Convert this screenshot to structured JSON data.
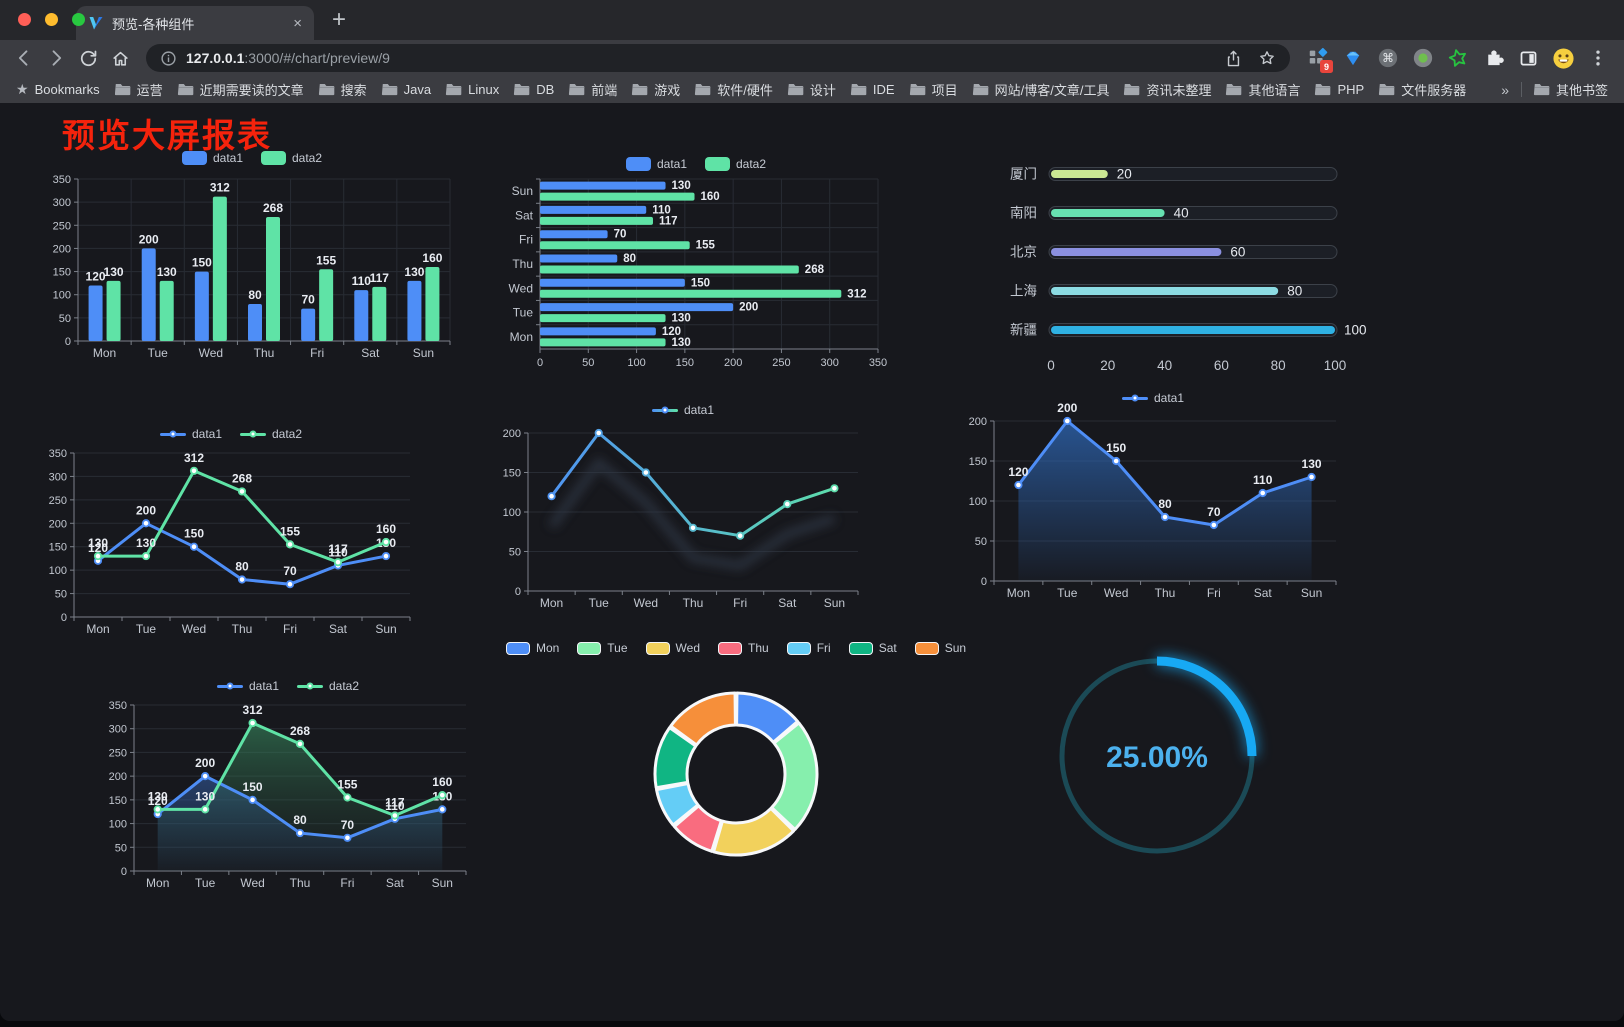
{
  "browser": {
    "traffic_lights": {
      "close": "#ff5f57",
      "minimize": "#febc2e",
      "zoom": "#28c840"
    },
    "tab": {
      "title": "预览-各种组件",
      "close_glyph": "×",
      "new_tab_glyph": "+"
    },
    "toolbar": {
      "url_host": "127.0.0.1",
      "url_rest": ":3000/#/chart/preview/9",
      "extension_badge": "9"
    },
    "bookmarks_bar": {
      "star_label": "Bookmarks",
      "folders": [
        "运营",
        "近期需要读的文章",
        "搜索",
        "Java",
        "Linux",
        "DB",
        "前端",
        "游戏",
        "软件/硬件",
        "设计",
        "IDE",
        "项目",
        "网站/博客/文章/工具",
        "资讯未整理",
        "其他语言",
        "PHP",
        "文件服务器"
      ],
      "overflow_chevron": "»",
      "other_bookmarks": "其他书签"
    }
  },
  "page": {
    "title": "预览大屏报表",
    "title_color": "#f5230c",
    "background": "#17181d"
  },
  "palette": {
    "blue": "#4e8ef7",
    "green": "#5fe3a6",
    "axis_label": "#c3c8d1",
    "value_label": "#e9ecf2"
  },
  "chart_data": [
    {
      "type": "bar",
      "categories": [
        "Mon",
        "Tue",
        "Wed",
        "Thu",
        "Fri",
        "Sat",
        "Sun"
      ],
      "series": [
        {
          "name": "data1",
          "color": "#4e8ef7",
          "values": [
            120,
            200,
            150,
            80,
            70,
            110,
            130
          ]
        },
        {
          "name": "data2",
          "color": "#5fe3a6",
          "values": [
            130,
            130,
            312,
            268,
            155,
            117,
            160
          ]
        }
      ],
      "ylim": [
        0,
        350
      ],
      "ytick_step": 50,
      "value_labels": true,
      "legend_position": "top",
      "grid": true
    },
    {
      "type": "bar-horizontal",
      "categories": [
        "Mon",
        "Tue",
        "Wed",
        "Thu",
        "Fri",
        "Sat",
        "Sun"
      ],
      "display_order_top_to_bottom": [
        "Sun",
        "Sat",
        "Fri",
        "Thu",
        "Wed",
        "Tue",
        "Mon"
      ],
      "series": [
        {
          "name": "data1",
          "color": "#4e8ef7",
          "values": [
            120,
            200,
            150,
            80,
            70,
            110,
            130
          ]
        },
        {
          "name": "data2",
          "color": "#5fe3a6",
          "values": [
            130,
            130,
            312,
            268,
            155,
            117,
            160
          ]
        }
      ],
      "xlim": [
        0,
        350
      ],
      "xtick_step": 50,
      "value_labels": true,
      "legend_position": "top",
      "grid": true
    },
    {
      "type": "progress",
      "items": [
        {
          "label": "厦门",
          "value": 20,
          "color": "#cbe793"
        },
        {
          "label": "南阳",
          "value": 40,
          "color": "#67e0b1"
        },
        {
          "label": "北京",
          "value": 60,
          "color": "#8b90e0"
        },
        {
          "label": "上海",
          "value": 80,
          "color": "#8cdbe3"
        },
        {
          "label": "新疆",
          "value": 100,
          "color": "#2fb1e3"
        }
      ],
      "max": 100,
      "xticks": [
        0,
        20,
        40,
        60,
        80,
        100
      ]
    },
    {
      "type": "line",
      "categories": [
        "Mon",
        "Tue",
        "Wed",
        "Thu",
        "Fri",
        "Sat",
        "Sun"
      ],
      "series": [
        {
          "name": "data1",
          "color": "#4e8ef7",
          "values": [
            120,
            200,
            150,
            80,
            70,
            110,
            130
          ]
        },
        {
          "name": "data2",
          "color": "#5fe3a6",
          "values": [
            130,
            130,
            312,
            268,
            155,
            117,
            160
          ]
        }
      ],
      "ylim": [
        0,
        350
      ],
      "ytick_step": 50,
      "value_labels": true,
      "legend_position": "top",
      "grid": true
    },
    {
      "type": "line-gradient",
      "categories": [
        "Mon",
        "Tue",
        "Wed",
        "Thu",
        "Fri",
        "Sat",
        "Sun"
      ],
      "series": [
        {
          "name": "data1",
          "gradient": [
            "#4e8ef7",
            "#5fe3a6"
          ],
          "values": [
            120,
            200,
            150,
            80,
            70,
            110,
            130
          ]
        }
      ],
      "ylim": [
        0,
        200
      ],
      "ytick_step": 50,
      "value_labels": false,
      "shadow": true,
      "legend_position": "top",
      "grid": true
    },
    {
      "type": "line-area",
      "categories": [
        "Mon",
        "Tue",
        "Wed",
        "Thu",
        "Fri",
        "Sat",
        "Sun"
      ],
      "series": [
        {
          "name": "data1",
          "color": "#4e8ef7",
          "area_from": "rgba(46,104,183,0.75)",
          "area_to": "rgba(46,104,183,0.04)",
          "values": [
            120,
            200,
            150,
            80,
            70,
            110,
            130
          ]
        }
      ],
      "ylim": [
        0,
        200
      ],
      "ytick_step": 50,
      "value_labels": true,
      "legend_position": "top",
      "grid": true
    },
    {
      "type": "line",
      "categories": [
        "Mon",
        "Tue",
        "Wed",
        "Thu",
        "Fri",
        "Sat",
        "Sun"
      ],
      "series": [
        {
          "name": "data1",
          "color": "#4e8ef7",
          "area_from": "rgba(52,96,170,0.55)",
          "area_to": "rgba(52,96,170,0.04)",
          "values": [
            120,
            200,
            150,
            80,
            70,
            110,
            130
          ]
        },
        {
          "name": "data2",
          "color": "#5fe3a6",
          "area_from": "rgba(56,140,96,0.60)",
          "area_to": "rgba(40,70,54,0.05)",
          "values": [
            130,
            130,
            312,
            268,
            155,
            117,
            160
          ]
        }
      ],
      "ylim": [
        0,
        350
      ],
      "ytick_step": 50,
      "value_labels": true,
      "legend_position": "top",
      "grid": true
    },
    {
      "type": "pie",
      "donut": true,
      "items": [
        {
          "label": "Mon",
          "value": 120,
          "color": "#4e8ef7"
        },
        {
          "label": "Tue",
          "value": 200,
          "color": "#86efad"
        },
        {
          "label": "Wed",
          "value": 150,
          "color": "#f2d15c"
        },
        {
          "label": "Thu",
          "value": 80,
          "color": "#f96c7f"
        },
        {
          "label": "Fri",
          "value": 70,
          "color": "#64cdf6"
        },
        {
          "label": "Sat",
          "value": 110,
          "color": "#10b583"
        },
        {
          "label": "Sun",
          "value": 130,
          "color": "#f68f3a"
        }
      ],
      "legend_position": "top"
    },
    {
      "type": "gauge",
      "percent": 25,
      "label": "25.00%",
      "arc_color": "#17a9f4",
      "track_color": "#1b4a56",
      "text_color": "#4cb1ee"
    }
  ]
}
